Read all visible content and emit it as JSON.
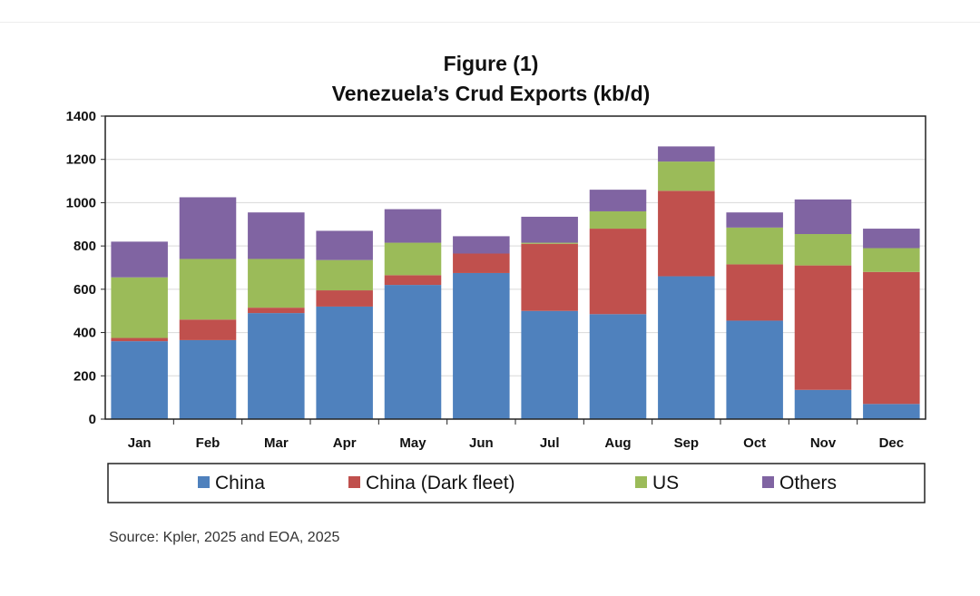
{
  "chart_data": {
    "type": "bar",
    "stacked": true,
    "title": "Figure (1)",
    "subtitle": "Venezuela’s Crud Exports (kb/d)",
    "xlabel": "",
    "ylabel": "",
    "ylim": [
      0,
      1400
    ],
    "yticks": [
      0,
      200,
      400,
      600,
      800,
      1000,
      1200,
      1400
    ],
    "grid": true,
    "legend_position": "bottom",
    "categories": [
      "Jan",
      "Feb",
      "Mar",
      "Apr",
      "May",
      "Jun",
      "Jul",
      "Aug",
      "Sep",
      "Oct",
      "Nov",
      "Dec"
    ],
    "series": [
      {
        "name": "China",
        "color": "#4f81bd",
        "values": [
          360,
          365,
          490,
          520,
          620,
          675,
          500,
          485,
          660,
          455,
          135,
          70
        ]
      },
      {
        "name": "China (Dark fleet)",
        "color": "#c0504d",
        "values": [
          15,
          95,
          25,
          75,
          45,
          90,
          310,
          395,
          395,
          260,
          575,
          610
        ]
      },
      {
        "name": "US",
        "color": "#9bbb59",
        "values": [
          280,
          280,
          225,
          140,
          150,
          0,
          5,
          80,
          135,
          170,
          145,
          110
        ]
      },
      {
        "name": "Others",
        "color": "#8064a2",
        "values": [
          165,
          285,
          215,
          135,
          155,
          80,
          120,
          100,
          70,
          70,
          160,
          90
        ]
      }
    ]
  },
  "source": "Source: Kpler, 2025 and EOA, 2025"
}
